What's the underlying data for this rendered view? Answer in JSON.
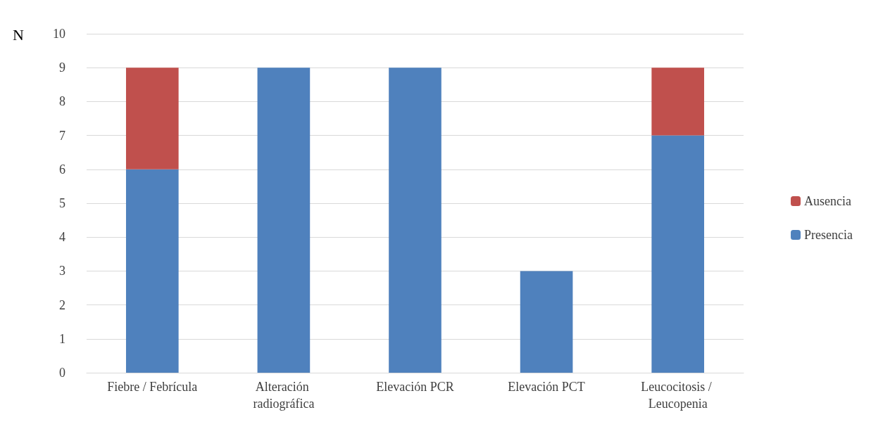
{
  "chart_data": {
    "type": "bar",
    "stacked": true,
    "ylabel": "N",
    "categories": [
      "Fiebre / Febrícula",
      "Alteración radiográfica",
      "Elevación PCR",
      "Elevación PCT",
      "Leucocitosis / Leucopenia"
    ],
    "series": [
      {
        "name": "Presencia",
        "color": "#4f81bd",
        "values": [
          6,
          9,
          9,
          3,
          7
        ]
      },
      {
        "name": "Ausencia",
        "color": "#c0504d",
        "values": [
          3,
          0,
          0,
          0,
          2
        ]
      }
    ],
    "ylim": [
      0,
      10
    ],
    "yticks": [
      0,
      1,
      2,
      3,
      4,
      5,
      6,
      7,
      8,
      9,
      10
    ],
    "grid": "y",
    "legend": "right"
  }
}
